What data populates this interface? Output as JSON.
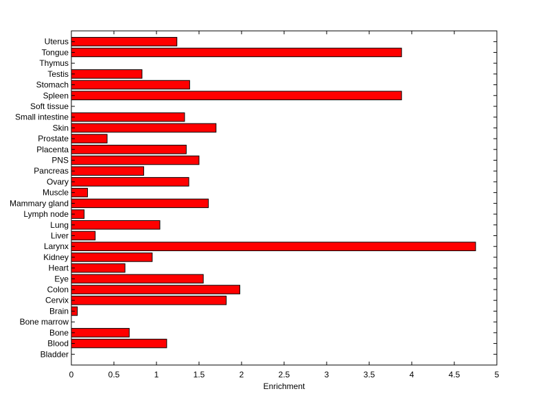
{
  "chart_data": {
    "type": "bar",
    "orientation": "horizontal",
    "title": "",
    "xlabel": "Enrichment",
    "ylabel": "",
    "xlim": [
      0,
      5
    ],
    "xticks": [
      0,
      0.5,
      1,
      1.5,
      2,
      2.5,
      3,
      3.5,
      4,
      4.5,
      5
    ],
    "xtick_labels": [
      "0",
      "0.5",
      "1",
      "1.5",
      "2",
      "2.5",
      "3",
      "3.5",
      "4",
      "4.5",
      "5"
    ],
    "grid": false,
    "bar_color": "#ff0000",
    "bar_edge_color": "#000000",
    "categories": [
      "Bladder",
      "Blood",
      "Bone",
      "Bone marrow",
      "Brain",
      "Cervix",
      "Colon",
      "Eye",
      "Heart",
      "Kidney",
      "Larynx",
      "Liver",
      "Lung",
      "Lymph node",
      "Mammary gland",
      "Muscle",
      "Ovary",
      "Pancreas",
      "PNS",
      "Placenta",
      "Prostate",
      "Skin",
      "Small intestine",
      "Soft tissue",
      "Spleen",
      "Stomach",
      "Testis",
      "Thymus",
      "Tongue",
      "Uterus"
    ],
    "values": [
      0,
      1.12,
      0.68,
      0,
      0.07,
      1.82,
      1.98,
      1.55,
      0.63,
      0.95,
      4.75,
      0.28,
      1.04,
      0.15,
      1.61,
      0.19,
      1.38,
      0.85,
      1.5,
      1.35,
      0.42,
      1.7,
      1.33,
      0,
      3.88,
      1.39,
      0.83,
      0,
      3.88,
      1.24
    ]
  }
}
